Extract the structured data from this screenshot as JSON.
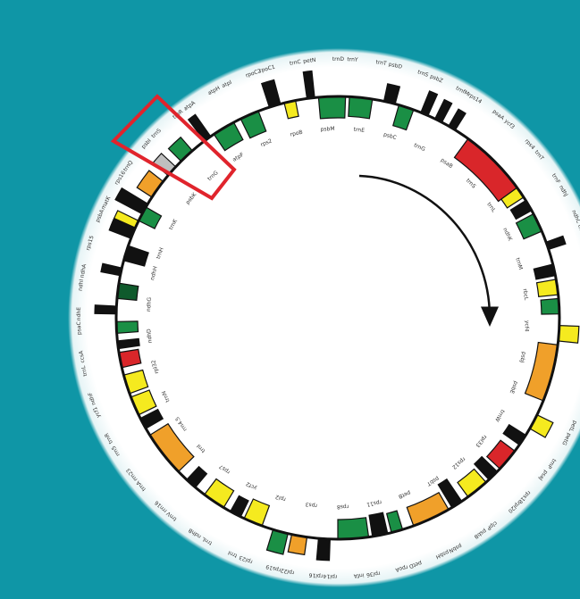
{
  "colors": {
    "background": "#0f96a6",
    "disc": "#ffffff",
    "green": "#1a8f45",
    "dark_green": "#0f5a2c",
    "orange": "#f0a02a",
    "yellow": "#f5ea1f",
    "red": "#d9262a",
    "black": "#111111",
    "grey": "#bfbfbf",
    "highlight": "#e0242c"
  },
  "genome_map": {
    "direction_arrow": "clockwise",
    "highlight_region": "boxed locus near upper-left of the map",
    "labels": [
      "trnH",
      "psbA",
      "matK",
      "trnK",
      "rps16",
      "trnQ",
      "psbK",
      "psbI",
      "trnS",
      "trnG",
      "trnR",
      "atpA",
      "atpF",
      "atpH",
      "atpI",
      "rps2",
      "rpoC2",
      "rpoC1",
      "rpoB",
      "trnC",
      "petN",
      "psbM",
      "trnD",
      "trnY",
      "trnE",
      "trnT",
      "psbD",
      "psbC",
      "trnS",
      "psbZ",
      "trnG",
      "trnfM",
      "rps14",
      "psaB",
      "psaA",
      "ycf3",
      "trnS",
      "rps4",
      "trnT",
      "trnL",
      "trnF",
      "ndhJ",
      "ndhK",
      "ndhC",
      "trnV",
      "trnM",
      "atpE",
      "atpB",
      "rbcL",
      "accD",
      "psaI",
      "ycf4",
      "cemA",
      "petA",
      "psbJ",
      "psbL",
      "psbF",
      "psbE",
      "petL",
      "petG",
      "trnW",
      "trnP",
      "psaJ",
      "rpl33",
      "rps18",
      "rpl20",
      "rps12",
      "clpP",
      "psbB",
      "psbT",
      "psbN",
      "psbH",
      "petB",
      "petD",
      "rpoA",
      "rps11",
      "rpl36",
      "infA",
      "rps8",
      "rpl14",
      "rpl16",
      "rps3",
      "rpl22",
      "rps19",
      "rpl2",
      "rpl23",
      "trnI",
      "ycf2",
      "trnL",
      "ndhB",
      "rps7",
      "trnV",
      "rrn16",
      "trnI",
      "trnA",
      "rrn23",
      "rrn4.5",
      "rrn5",
      "trnR",
      "trnN",
      "ycf1",
      "ndhF",
      "rpl32",
      "trnL",
      "ccsA",
      "ndhD",
      "psaC",
      "ndhE",
      "ndhG",
      "ndhI",
      "ndhA",
      "ndhH",
      "rps15"
    ]
  }
}
